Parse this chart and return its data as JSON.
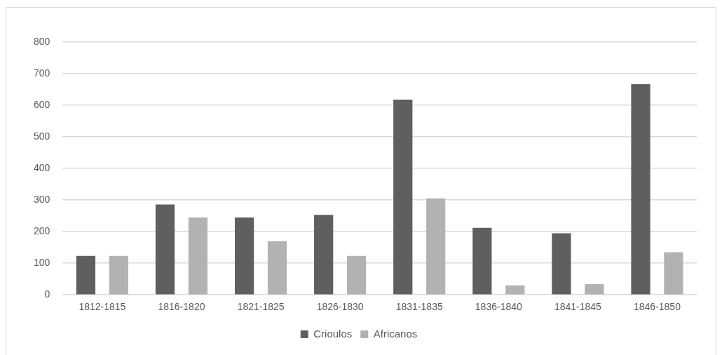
{
  "chart_data": {
    "type": "bar",
    "categories": [
      "1812-1815",
      "1816-1820",
      "1821-1825",
      "1826-1830",
      "1831-1835",
      "1836-1840",
      "1841-1845",
      "1846-1850"
    ],
    "series": [
      {
        "name": "Crioulos",
        "color": "#5f5f5f",
        "values": [
          123,
          286,
          245,
          253,
          618,
          212,
          195,
          667
        ]
      },
      {
        "name": "Africanos",
        "color": "#b2b2b2",
        "values": [
          123,
          245,
          170,
          123,
          305,
          30,
          34,
          135
        ]
      }
    ],
    "ylim": [
      0,
      800
    ],
    "yticks": [
      0,
      100,
      200,
      300,
      400,
      500,
      600,
      700,
      800
    ],
    "grid": "y",
    "legend": "bottom"
  }
}
